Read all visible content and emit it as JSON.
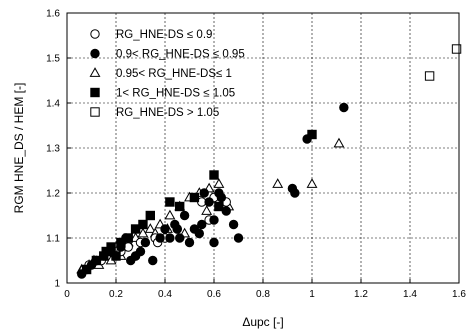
{
  "chart_data": {
    "type": "scatter",
    "xlabel": "Δupc [-]",
    "ylabel": "RGM HNE_DS / HEM [-]",
    "xlim": [
      0,
      1.6
    ],
    "ylim": [
      1.0,
      1.6
    ],
    "xticks": [
      "0",
      "0.2",
      "0.4",
      "0.6",
      "0.8",
      "1",
      "1.2",
      "1.4",
      "1.6"
    ],
    "yticks": [
      "1",
      "1.1",
      "1.2",
      "1.3",
      "1.4",
      "1.5",
      "1.6"
    ],
    "grid": true,
    "legend_position": "top-left",
    "series": [
      {
        "name": "RG_HNE-DS ≤ 0.9",
        "marker": "circle-open",
        "points": [
          [
            0.07,
            1.03
          ],
          [
            0.09,
            1.04
          ],
          [
            0.12,
            1.05
          ],
          [
            0.16,
            1.06
          ],
          [
            0.2,
            1.07
          ],
          [
            0.25,
            1.08
          ],
          [
            0.3,
            1.09
          ],
          [
            0.36,
            1.1
          ],
          [
            0.4,
            1.1
          ],
          [
            0.45,
            1.12
          ],
          [
            0.55,
            1.18
          ],
          [
            0.58,
            1.14
          ],
          [
            0.6,
            1.19
          ],
          [
            0.65,
            1.18
          ],
          [
            0.37,
            1.09
          ],
          [
            0.22,
            1.07
          ],
          [
            0.28,
            1.06
          ],
          [
            0.14,
            1.05
          ]
        ]
      },
      {
        "name": "0.9< RG_HNE-DS ≤ 0.95",
        "marker": "circle-filled",
        "points": [
          [
            0.06,
            1.02
          ],
          [
            0.08,
            1.03
          ],
          [
            0.1,
            1.04
          ],
          [
            0.12,
            1.05
          ],
          [
            0.15,
            1.06
          ],
          [
            0.18,
            1.07
          ],
          [
            0.2,
            1.06
          ],
          [
            0.22,
            1.08
          ],
          [
            0.24,
            1.1
          ],
          [
            0.26,
            1.05
          ],
          [
            0.28,
            1.06
          ],
          [
            0.3,
            1.07
          ],
          [
            0.32,
            1.09
          ],
          [
            0.35,
            1.05
          ],
          [
            0.38,
            1.1
          ],
          [
            0.4,
            1.12
          ],
          [
            0.42,
            1.1
          ],
          [
            0.44,
            1.13
          ],
          [
            0.46,
            1.1
          ],
          [
            0.48,
            1.15
          ],
          [
            0.5,
            1.09
          ],
          [
            0.52,
            1.12
          ],
          [
            0.54,
            1.11
          ],
          [
            0.56,
            1.2
          ],
          [
            0.58,
            1.18
          ],
          [
            0.6,
            1.14
          ],
          [
            0.62,
            1.2
          ],
          [
            0.63,
            1.19
          ],
          [
            0.65,
            1.16
          ],
          [
            0.68,
            1.13
          ],
          [
            0.7,
            1.1
          ],
          [
            0.6,
            1.09
          ],
          [
            0.55,
            1.13
          ],
          [
            0.45,
            1.12
          ],
          [
            0.92,
            1.21
          ],
          [
            0.93,
            1.2
          ],
          [
            0.98,
            1.32
          ],
          [
            1.13,
            1.39
          ]
        ]
      },
      {
        "name": "0.95< RG_HNE-DS≤ 1",
        "marker": "triangle-open",
        "points": [
          [
            0.06,
            1.03
          ],
          [
            0.09,
            1.04
          ],
          [
            0.11,
            1.05
          ],
          [
            0.13,
            1.04
          ],
          [
            0.15,
            1.06
          ],
          [
            0.18,
            1.05
          ],
          [
            0.2,
            1.08
          ],
          [
            0.22,
            1.06
          ],
          [
            0.25,
            1.09
          ],
          [
            0.28,
            1.1
          ],
          [
            0.31,
            1.11
          ],
          [
            0.34,
            1.12
          ],
          [
            0.38,
            1.13
          ],
          [
            0.42,
            1.15
          ],
          [
            0.46,
            1.17
          ],
          [
            0.5,
            1.19
          ],
          [
            0.54,
            1.2
          ],
          [
            0.58,
            1.21
          ],
          [
            0.62,
            1.22
          ],
          [
            0.66,
            1.17
          ],
          [
            0.57,
            1.16
          ],
          [
            0.48,
            1.11
          ],
          [
            0.36,
            1.11
          ],
          [
            0.41,
            1.12
          ],
          [
            0.86,
            1.22
          ],
          [
            1.0,
            1.22
          ],
          [
            1.11,
            1.31
          ]
        ]
      },
      {
        "name": "1< RG_HNE-DS ≤ 1.05",
        "marker": "square-filled",
        "points": [
          [
            0.08,
            1.03
          ],
          [
            0.12,
            1.05
          ],
          [
            0.15,
            1.06
          ],
          [
            0.18,
            1.08
          ],
          [
            0.22,
            1.09
          ],
          [
            0.25,
            1.1
          ],
          [
            0.28,
            1.12
          ],
          [
            0.31,
            1.13
          ],
          [
            0.34,
            1.15
          ],
          [
            0.42,
            1.18
          ],
          [
            0.46,
            1.17
          ],
          [
            0.52,
            1.19
          ],
          [
            0.6,
            1.24
          ],
          [
            0.62,
            1.17
          ],
          [
            0.2,
            1.06
          ],
          [
            0.16,
            1.07
          ],
          [
            1.0,
            1.33
          ]
        ]
      },
      {
        "name": "RG_HNE-DS > 1.05",
        "marker": "square-open",
        "points": [
          [
            1.48,
            1.46
          ],
          [
            1.59,
            1.52
          ]
        ]
      }
    ]
  }
}
